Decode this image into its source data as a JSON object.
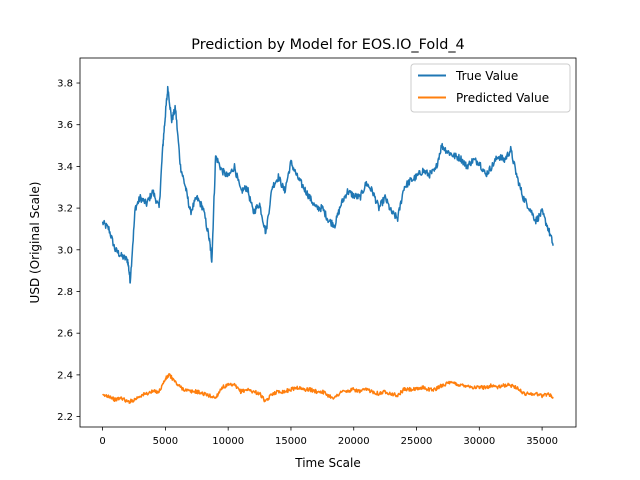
{
  "chart_data": {
    "type": "line",
    "title": "Prediction by Model for EOS.IO_Fold_4",
    "xlabel": "Time Scale",
    "ylabel": "USD (Original Scale)",
    "xlim": [
      -1800,
      37700
    ],
    "ylim": [
      2.15,
      3.92
    ],
    "xticks": [
      0,
      5000,
      10000,
      15000,
      20000,
      25000,
      30000,
      35000
    ],
    "xtick_labels": [
      "0",
      "5000",
      "10000",
      "15000",
      "20000",
      "25000",
      "30000",
      "35000"
    ],
    "yticks": [
      2.2,
      2.4,
      2.6,
      2.8,
      3.0,
      3.2,
      3.4,
      3.6,
      3.8
    ],
    "ytick_labels": [
      "2.2",
      "2.4",
      "2.6",
      "2.8",
      "3.0",
      "3.2",
      "3.4",
      "3.6",
      "3.8"
    ],
    "grid": false,
    "legend_position": "top-right",
    "series": [
      {
        "name": "True Value",
        "color": "#1f77b4",
        "x": [
          0,
          500,
          1000,
          1500,
          2000,
          2200,
          2600,
          3000,
          3500,
          4000,
          4500,
          4800,
          5000,
          5200,
          5500,
          5800,
          6200,
          6600,
          7000,
          7500,
          8000,
          8500,
          8700,
          9000,
          9500,
          10000,
          10500,
          11000,
          11500,
          12000,
          12500,
          13000,
          13500,
          14000,
          14500,
          15000,
          15500,
          16000,
          16500,
          17000,
          17500,
          18000,
          18500,
          19000,
          19500,
          20000,
          20500,
          21000,
          21500,
          22000,
          22500,
          23000,
          23500,
          24000,
          24500,
          25000,
          25500,
          26000,
          26500,
          27000,
          27500,
          28000,
          28500,
          29000,
          29500,
          30000,
          30500,
          31000,
          31500,
          32000,
          32500,
          33000,
          33500,
          34000,
          34500,
          35000,
          35500,
          35900
        ],
        "values": [
          3.13,
          3.1,
          3.0,
          2.97,
          2.95,
          2.85,
          3.2,
          3.25,
          3.22,
          3.28,
          3.2,
          3.5,
          3.65,
          3.78,
          3.62,
          3.68,
          3.4,
          3.3,
          3.18,
          3.25,
          3.2,
          3.05,
          2.95,
          3.45,
          3.38,
          3.35,
          3.4,
          3.28,
          3.3,
          3.18,
          3.22,
          3.08,
          3.3,
          3.35,
          3.28,
          3.42,
          3.35,
          3.3,
          3.25,
          3.2,
          3.2,
          3.14,
          3.12,
          3.22,
          3.28,
          3.26,
          3.25,
          3.32,
          3.28,
          3.2,
          3.25,
          3.18,
          3.15,
          3.3,
          3.33,
          3.35,
          3.38,
          3.36,
          3.38,
          3.5,
          3.47,
          3.45,
          3.44,
          3.4,
          3.43,
          3.42,
          3.36,
          3.4,
          3.45,
          3.43,
          3.48,
          3.35,
          3.25,
          3.2,
          3.14,
          3.18,
          3.1,
          3.02
        ]
      },
      {
        "name": "Predicted Value",
        "color": "#ff7f0e",
        "x": [
          0,
          500,
          1000,
          1500,
          2000,
          2500,
          3000,
          3500,
          4000,
          4500,
          5000,
          5300,
          5600,
          6000,
          6500,
          7000,
          7500,
          8000,
          8500,
          9000,
          9500,
          10000,
          10500,
          11000,
          11500,
          12000,
          12500,
          13000,
          13500,
          14000,
          14500,
          15000,
          15500,
          16000,
          16500,
          17000,
          17500,
          18000,
          18500,
          19000,
          19500,
          20000,
          20500,
          21000,
          21500,
          22000,
          22500,
          23000,
          23500,
          24000,
          24500,
          25000,
          25500,
          26000,
          26500,
          27000,
          27500,
          28000,
          28500,
          29000,
          29500,
          30000,
          30500,
          31000,
          31500,
          32000,
          32500,
          33000,
          33500,
          34000,
          34500,
          35000,
          35500,
          35900
        ],
        "values": [
          2.3,
          2.3,
          2.28,
          2.29,
          2.27,
          2.28,
          2.3,
          2.31,
          2.32,
          2.32,
          2.38,
          2.4,
          2.38,
          2.35,
          2.33,
          2.32,
          2.32,
          2.31,
          2.3,
          2.29,
          2.34,
          2.35,
          2.35,
          2.32,
          2.33,
          2.32,
          2.31,
          2.27,
          2.31,
          2.32,
          2.32,
          2.33,
          2.34,
          2.33,
          2.33,
          2.32,
          2.32,
          2.3,
          2.29,
          2.32,
          2.32,
          2.33,
          2.32,
          2.33,
          2.32,
          2.31,
          2.32,
          2.31,
          2.3,
          2.33,
          2.33,
          2.33,
          2.34,
          2.33,
          2.33,
          2.35,
          2.36,
          2.36,
          2.35,
          2.35,
          2.34,
          2.34,
          2.34,
          2.35,
          2.34,
          2.35,
          2.35,
          2.34,
          2.31,
          2.31,
          2.31,
          2.3,
          2.31,
          2.29
        ]
      }
    ]
  }
}
